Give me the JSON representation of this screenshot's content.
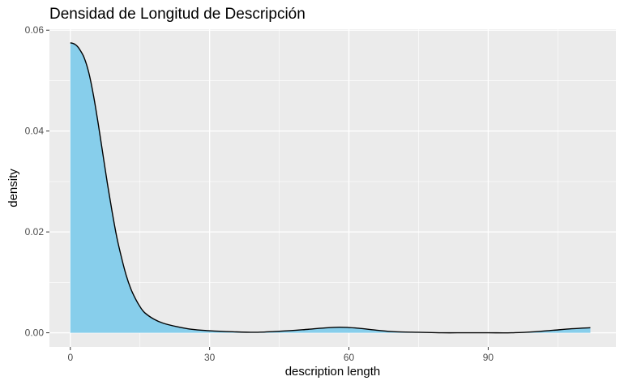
{
  "chart_data": {
    "type": "area",
    "title": "Densidad de Longitud de Descripción",
    "xlabel": "description length",
    "ylabel": "density",
    "xlim": [
      -4.5,
      117.5
    ],
    "ylim": [
      -0.0028,
      0.0602
    ],
    "x_ticks": [
      0,
      30,
      60,
      90
    ],
    "x_tick_labels": [
      "0",
      "30",
      "60",
      "90"
    ],
    "y_ticks": [
      0.0,
      0.02,
      0.04,
      0.06
    ],
    "y_tick_labels": [
      "0.00",
      "0.02",
      "0.04",
      "0.06"
    ],
    "grid": true,
    "legend": "none",
    "colors": {
      "fill": "#87CEEB",
      "line": "#000000",
      "panel": "#EBEBEB",
      "grid": "#FFFFFF"
    },
    "series": [
      {
        "x": [
          0,
          0.5,
          1,
          1.5,
          2,
          3,
          4,
          5,
          6,
          7,
          8,
          9,
          10,
          11,
          12,
          13,
          14,
          15,
          16,
          18,
          20,
          23,
          26,
          30,
          35,
          40,
          45,
          50,
          54,
          58,
          62,
          66,
          70,
          75,
          80,
          85,
          90,
          95,
          100,
          104,
          108,
          112
        ],
        "y": [
          0.0575,
          0.0574,
          0.0572,
          0.0568,
          0.0562,
          0.0545,
          0.0515,
          0.047,
          0.0415,
          0.0355,
          0.0295,
          0.024,
          0.019,
          0.015,
          0.0115,
          0.0088,
          0.0068,
          0.0052,
          0.004,
          0.0027,
          0.0019,
          0.0012,
          0.0007,
          0.0004,
          0.0002,
          0.0001,
          0.0003,
          0.0006,
          0.0009,
          0.0011,
          0.0009,
          0.0005,
          0.0002,
          0.0001,
          0.0,
          0.0,
          0.0,
          0.0,
          0.0002,
          0.0005,
          0.0008,
          0.001
        ]
      }
    ]
  }
}
